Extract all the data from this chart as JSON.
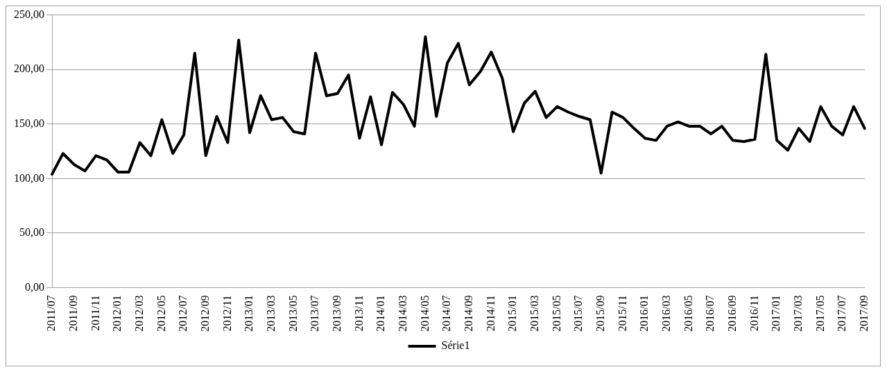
{
  "chart_data": {
    "type": "line",
    "categories": [
      "2011/07",
      null,
      "2011/09",
      null,
      "2011/11",
      null,
      "2012/01",
      null,
      "2012/03",
      null,
      "2012/05",
      null,
      "2012/07",
      null,
      "2012/09",
      null,
      "2012/11",
      null,
      "2013/01",
      null,
      "2013/03",
      null,
      "2013/05",
      null,
      "2013/07",
      null,
      "2013/09",
      null,
      "2013/11",
      null,
      "2014/01",
      null,
      "2014/03",
      null,
      "2014/05",
      null,
      "2014/07",
      null,
      "2014/09",
      null,
      "2014/11",
      null,
      "2015/01",
      null,
      "2015/03",
      null,
      "2015/05",
      null,
      "2015/07",
      null,
      "2015/09",
      null,
      "2015/11",
      null,
      "2016/01",
      null,
      "2016/03",
      null,
      "2016/05",
      null,
      "2016/07",
      null,
      "2016/09",
      null,
      "2016/11",
      null,
      "2017/01",
      null,
      "2017/03",
      null,
      "2017/05",
      null,
      "2017/07",
      null,
      "2017/09"
    ],
    "series": [
      {
        "name": "Série1",
        "color": "#000000",
        "values": [
          104,
          123,
          113,
          107,
          121,
          117,
          106,
          106,
          133,
          121,
          154,
          123,
          140,
          215,
          121,
          157,
          133,
          227,
          142,
          176,
          154,
          156,
          143,
          141,
          215,
          176,
          178,
          195,
          137,
          175,
          131,
          179,
          168,
          148,
          230,
          157,
          206,
          224,
          186,
          198,
          216,
          192,
          143,
          169,
          180,
          156,
          166,
          161,
          157,
          154,
          105,
          161,
          156,
          146,
          137,
          135,
          148,
          152,
          148,
          148,
          141,
          148,
          135,
          134,
          136,
          214,
          135,
          126,
          146,
          134,
          166,
          148,
          140,
          166,
          146
        ]
      }
    ],
    "ylim": [
      0,
      250
    ],
    "yticks": [
      {
        "value": 0,
        "label": "0,00"
      },
      {
        "value": 50,
        "label": "50,00"
      },
      {
        "value": 100,
        "label": "100,00"
      },
      {
        "value": 150,
        "label": "150,00"
      },
      {
        "value": 200,
        "label": "200,00"
      },
      {
        "value": 250,
        "label": "250,00"
      }
    ],
    "grid": "y",
    "legend": "bottom",
    "marker": "none",
    "line_style": "solid"
  }
}
